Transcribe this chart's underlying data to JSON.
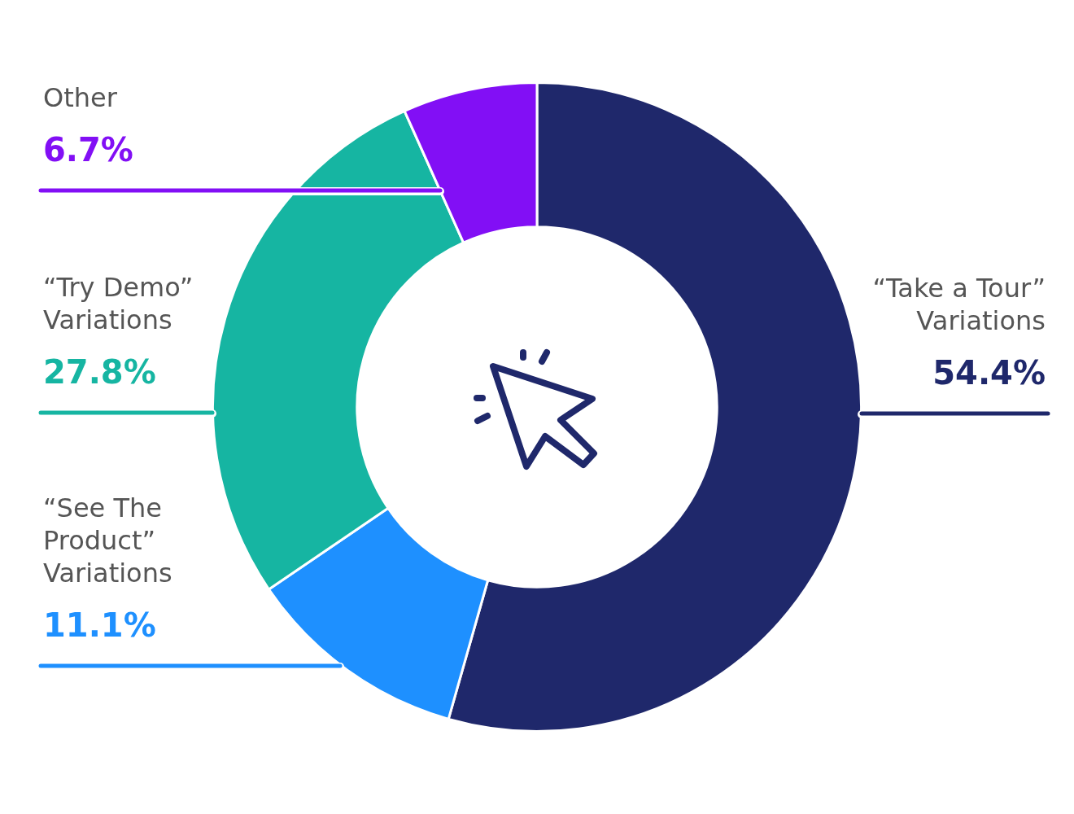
{
  "chart_data": {
    "type": "donut",
    "categories": [
      "“Take a Tour” Variations",
      "“See The Product” Variations",
      "“Try Demo” Variations",
      "Other"
    ],
    "values": [
      54.4,
      11.1,
      27.8,
      6.7
    ],
    "colors": [
      "#1f286b",
      "#1e90ff",
      "#16b5a2",
      "#820ff5"
    ],
    "value_labels": [
      "54.4%",
      "11.1%",
      "27.8%",
      "6.7%"
    ],
    "legend": false
  }
}
